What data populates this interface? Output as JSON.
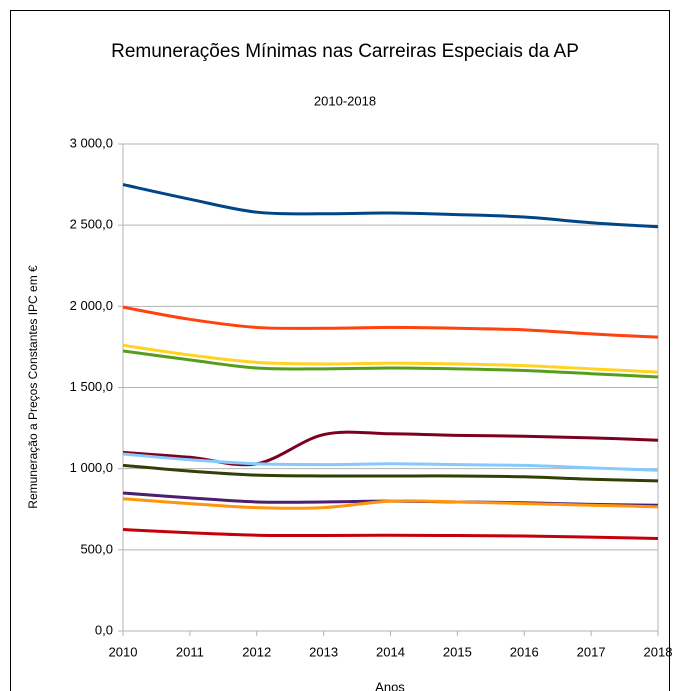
{
  "chart_data": {
    "type": "line",
    "title": "Remunerações Mínimas nas Carreiras Especiais da AP",
    "subtitle": "2010-2018",
    "x_label": "Anos",
    "y_label": "Remuneração a Preços Constantes IPC em €",
    "x": [
      2010,
      2011,
      2012,
      2013,
      2014,
      2015,
      2016,
      2017,
      2018
    ],
    "xlim": [
      2010,
      2018
    ],
    "xticks": [
      2010,
      2011,
      2012,
      2013,
      2014,
      2015,
      2016,
      2017,
      2018
    ],
    "ylim": [
      0,
      3000
    ],
    "yticks": [
      {
        "value": 0,
        "label": "0,0"
      },
      {
        "value": 500,
        "label": "500,0"
      },
      {
        "value": 1000,
        "label": "1 000,0"
      },
      {
        "value": 1500,
        "label": "1 500,0"
      },
      {
        "value": 2000,
        "label": "2 000,0"
      },
      {
        "value": 2500,
        "label": "2 500,0"
      },
      {
        "value": 3000,
        "label": "3 000,0"
      }
    ],
    "grid": true,
    "smooth": true,
    "series": [
      {
        "color": "#004586",
        "values": [
          2750,
          2660,
          2580,
          2570,
          2575,
          2565,
          2550,
          2515,
          2490
        ]
      },
      {
        "color": "#ff420e",
        "values": [
          1995,
          1920,
          1870,
          1865,
          1870,
          1865,
          1855,
          1830,
          1810
        ]
      },
      {
        "color": "#ffd320",
        "values": [
          1760,
          1700,
          1655,
          1645,
          1650,
          1645,
          1635,
          1615,
          1595
        ]
      },
      {
        "color": "#579d1c",
        "values": [
          1725,
          1670,
          1620,
          1615,
          1620,
          1615,
          1605,
          1585,
          1565
        ]
      },
      {
        "color": "#7e0021",
        "values": [
          1100,
          1070,
          1030,
          1210,
          1215,
          1205,
          1200,
          1190,
          1175
        ]
      },
      {
        "color": "#83caff",
        "values": [
          1090,
          1055,
          1030,
          1025,
          1030,
          1025,
          1020,
          1005,
          990
        ]
      },
      {
        "color": "#314004",
        "values": [
          1020,
          985,
          960,
          955,
          955,
          955,
          950,
          935,
          925
        ]
      },
      {
        "color": "#4b1f6f",
        "values": [
          850,
          820,
          795,
          795,
          800,
          795,
          790,
          780,
          775
        ]
      },
      {
        "color": "#ff950e",
        "values": [
          815,
          785,
          760,
          760,
          800,
          795,
          785,
          775,
          765
        ]
      },
      {
        "color": "#c5000b",
        "values": [
          625,
          605,
          590,
          588,
          590,
          588,
          585,
          578,
          570
        ]
      }
    ]
  }
}
